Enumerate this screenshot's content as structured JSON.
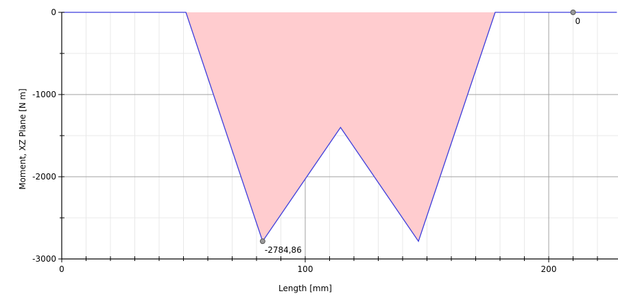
{
  "chart_data": {
    "type": "area",
    "xlabel": "Length [mm]",
    "ylabel": "Moment, XZ Plane [N m]",
    "xlim": [
      0,
      228
    ],
    "ylim": [
      -3000,
      0
    ],
    "grid": true,
    "x_ticks": [
      {
        "value": 0,
        "label": "0"
      },
      {
        "value": 100,
        "label": "100"
      },
      {
        "value": 200,
        "label": "200"
      }
    ],
    "y_ticks": [
      {
        "value": 0,
        "label": "0"
      },
      {
        "value": -1000,
        "label": "-1000"
      },
      {
        "value": -2000,
        "label": "-2000"
      },
      {
        "value": -3000,
        "label": "-3000"
      }
    ],
    "x_minor_step": 10,
    "y_minor_step": 500,
    "series": [
      {
        "x": [
          0,
          51,
          82.5,
          114.5,
          146.5,
          178,
          228
        ],
        "y": [
          0,
          0,
          -2784.86,
          -1400,
          -2784.86,
          0,
          0
        ],
        "line_color": "#3b3bdc",
        "fill_color": "#ffcccf"
      }
    ],
    "markers": [
      {
        "x": 82.5,
        "y": -2784.86,
        "label": "-2784,86",
        "label_pos": "below-right"
      },
      {
        "x": 210,
        "y": 0,
        "label": "0",
        "label_pos": "below-right"
      }
    ]
  }
}
